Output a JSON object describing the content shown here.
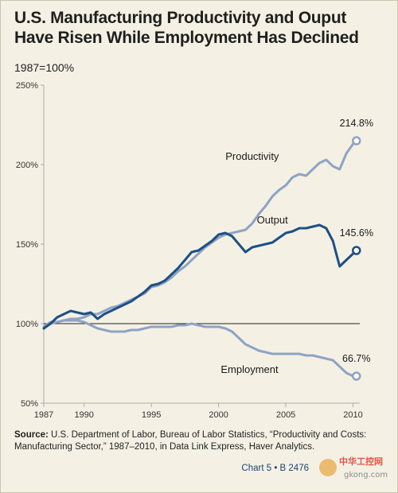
{
  "page": {
    "title": "U.S. Manufacturing Productivity and Ouput Have Risen While Employment Has Declined",
    "subtitle": "1987=100%",
    "source_label": "Source:",
    "source_text": "U.S. Department of Labor, Bureau of Labor Statistics, “Productivity and Costs: Manufacturing Sector,” 1987–2010, in Data Link Express, Haver Analytics.",
    "footer": "Chart 5 • B 2476",
    "watermark_text": "中华工控网",
    "watermark_sub": "gkong.com"
  },
  "colors": {
    "background": "#f4f1e4",
    "productivity": "#8fa3c4",
    "output": "#1e4f86",
    "employment": "#8fa3c4",
    "baseline": "#222222",
    "axis": "#aaaaaa"
  },
  "chart_data": {
    "type": "line",
    "xlim": [
      1987,
      2010.5
    ],
    "ylim": [
      50,
      250
    ],
    "x_ticks": [
      1987,
      1990,
      1995,
      2000,
      2005,
      2010
    ],
    "y_ticks": [
      {
        "value": 50,
        "label": "50%"
      },
      {
        "value": 100,
        "label": "100%"
      },
      {
        "value": 150,
        "label": "150%"
      },
      {
        "value": 200,
        "label": "200%"
      },
      {
        "value": 250,
        "label": "250%"
      }
    ],
    "reference_line": 100,
    "grid": false,
    "series": [
      {
        "name": "Productivity",
        "end_label": "214.8%",
        "x": [
          1987,
          1987.5,
          1988,
          1988.5,
          1989,
          1989.5,
          1990,
          1990.5,
          1991,
          1991.5,
          1992,
          1992.5,
          1993,
          1993.5,
          1994,
          1994.5,
          1995,
          1995.5,
          1996,
          1996.5,
          1997,
          1997.5,
          1998,
          1998.5,
          1999,
          1999.5,
          2000,
          2000.5,
          2001,
          2001.5,
          2002,
          2002.5,
          2003,
          2003.5,
          2004,
          2004.5,
          2005,
          2005.5,
          2006,
          2006.5,
          2007,
          2007.5,
          2008,
          2008.5,
          2009,
          2009.5,
          2010,
          2010.25
        ],
        "values": [
          97,
          100,
          101,
          102,
          103,
          103,
          104,
          106,
          106,
          108,
          110,
          111,
          113,
          115,
          117,
          119,
          123,
          124,
          126,
          129,
          133,
          136,
          140,
          144,
          148,
          151,
          154,
          156,
          157,
          158,
          159,
          163,
          169,
          174,
          180,
          184,
          187,
          192,
          194,
          193,
          197,
          201,
          203,
          199,
          197,
          207,
          213,
          215
        ]
      },
      {
        "name": "Output",
        "end_label": "145.6%",
        "x": [
          1987,
          1987.5,
          1988,
          1988.5,
          1989,
          1989.5,
          1990,
          1990.5,
          1991,
          1991.5,
          1992,
          1992.5,
          1993,
          1993.5,
          1994,
          1994.5,
          1995,
          1995.5,
          1996,
          1996.5,
          1997,
          1997.5,
          1998,
          1998.5,
          1999,
          1999.5,
          2000,
          2000.5,
          2001,
          2001.5,
          2002,
          2002.5,
          2003,
          2003.5,
          2004,
          2004.5,
          2005,
          2005.5,
          2006,
          2006.5,
          2007,
          2007.5,
          2008,
          2008.5,
          2009,
          2009.5,
          2010,
          2010.25
        ],
        "values": [
          97,
          100,
          104,
          106,
          108,
          107,
          106,
          107,
          103,
          106,
          108,
          110,
          112,
          114,
          117,
          120,
          124,
          125,
          127,
          131,
          135,
          140,
          145,
          146,
          149,
          152,
          156,
          157,
          155,
          150,
          145,
          148,
          149,
          150,
          151,
          154,
          157,
          158,
          160,
          160,
          161,
          162,
          160,
          152,
          136,
          140,
          144,
          146
        ]
      },
      {
        "name": "Employment",
        "end_label": "66.7%",
        "x": [
          1987,
          1987.5,
          1988,
          1988.5,
          1989,
          1989.5,
          1990,
          1990.5,
          1991,
          1991.5,
          1992,
          1992.5,
          1993,
          1993.5,
          1994,
          1994.5,
          1995,
          1995.5,
          1996,
          1996.5,
          1997,
          1997.5,
          1998,
          1998.5,
          1999,
          1999.5,
          2000,
          2000.5,
          2001,
          2001.5,
          2002,
          2002.5,
          2003,
          2003.5,
          2004,
          2004.5,
          2005,
          2005.5,
          2006,
          2006.5,
          2007,
          2007.5,
          2008,
          2008.5,
          2009,
          2009.5,
          2010,
          2010.25
        ],
        "values": [
          98,
          101,
          101,
          102,
          102,
          102,
          101,
          99,
          97,
          96,
          95,
          95,
          95,
          96,
          96,
          97,
          98,
          98,
          98,
          98,
          99,
          99,
          100,
          99,
          98,
          98,
          98,
          97,
          95,
          91,
          87,
          85,
          83,
          82,
          81,
          81,
          81,
          81,
          81,
          80,
          80,
          79,
          78,
          77,
          73,
          69,
          67,
          67
        ]
      }
    ]
  }
}
